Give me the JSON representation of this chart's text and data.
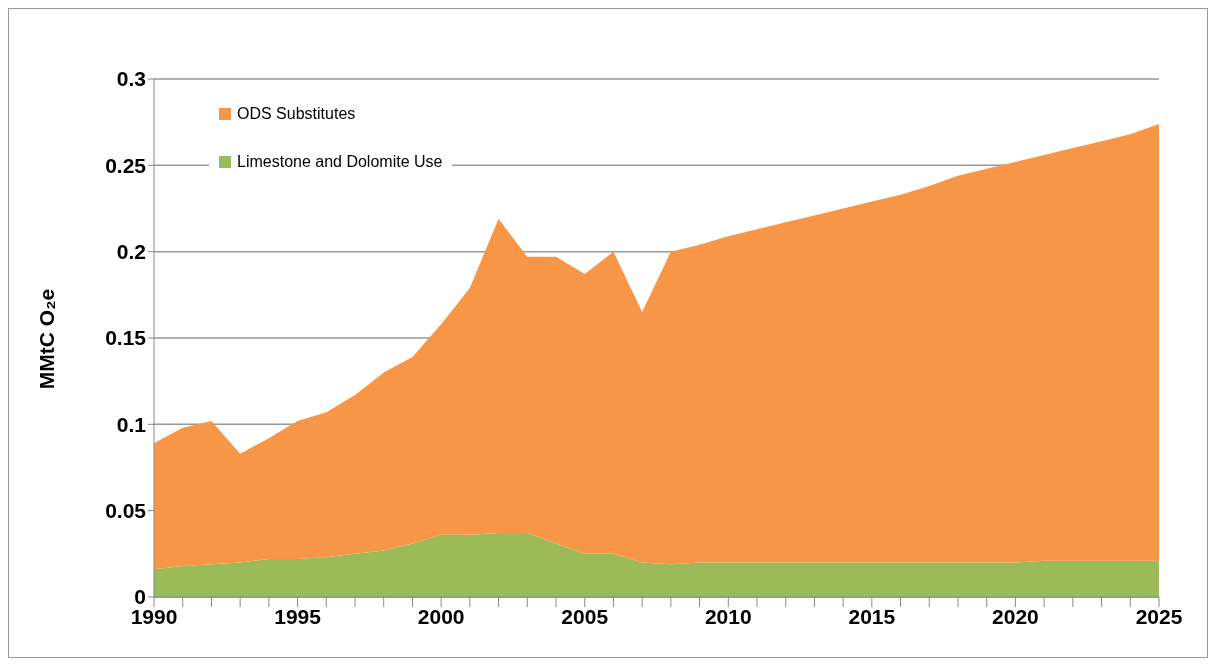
{
  "chart_data": {
    "type": "area",
    "stacked": true,
    "ylabel": "MMtC O₂e",
    "x": [
      1990,
      1991,
      1992,
      1993,
      1994,
      1995,
      1996,
      1997,
      1998,
      1999,
      2000,
      2001,
      2002,
      2003,
      2004,
      2005,
      2006,
      2007,
      2008,
      2009,
      2010,
      2011,
      2012,
      2013,
      2014,
      2015,
      2016,
      2017,
      2018,
      2019,
      2020,
      2021,
      2022,
      2023,
      2024,
      2025
    ],
    "series": [
      {
        "name": "Limestone and Dolomite Use",
        "color": "#9bbb59",
        "values": [
          0.016,
          0.018,
          0.019,
          0.02,
          0.022,
          0.022,
          0.023,
          0.025,
          0.027,
          0.031,
          0.036,
          0.036,
          0.037,
          0.037,
          0.031,
          0.025,
          0.025,
          0.02,
          0.019,
          0.02,
          0.02,
          0.02,
          0.02,
          0.02,
          0.02,
          0.02,
          0.02,
          0.02,
          0.02,
          0.02,
          0.02,
          0.021,
          0.021,
          0.021,
          0.021,
          0.021
        ]
      },
      {
        "name": "ODS Substitutes",
        "color": "#f79646",
        "values": [
          0.073,
          0.08,
          0.083,
          0.063,
          0.07,
          0.08,
          0.084,
          0.092,
          0.103,
          0.108,
          0.122,
          0.143,
          0.182,
          0.16,
          0.166,
          0.162,
          0.175,
          0.145,
          0.181,
          0.184,
          0.189,
          0.193,
          0.197,
          0.201,
          0.205,
          0.209,
          0.213,
          0.218,
          0.224,
          0.228,
          0.232,
          0.235,
          0.239,
          0.243,
          0.247,
          0.253
        ]
      }
    ],
    "xlim": [
      1990,
      2025
    ],
    "xticks": [
      1990,
      {
        "value": 1991,
        "label": null
      },
      {
        "value": 1992,
        "label": null
      },
      {
        "value": 1993,
        "label": null
      },
      {
        "value": 1994,
        "label": null
      },
      1995,
      {
        "value": 1996,
        "label": null
      },
      {
        "value": 1997,
        "label": null
      },
      {
        "value": 1998,
        "label": null
      },
      {
        "value": 1999,
        "label": null
      },
      2000,
      {
        "value": 2001,
        "label": null
      },
      {
        "value": 2002,
        "label": null
      },
      {
        "value": 2003,
        "label": null
      },
      {
        "value": 2004,
        "label": null
      },
      2005,
      {
        "value": 2006,
        "label": null
      },
      {
        "value": 2007,
        "label": null
      },
      {
        "value": 2008,
        "label": null
      },
      {
        "value": 2009,
        "label": null
      },
      2010,
      {
        "value": 2011,
        "label": null
      },
      {
        "value": 2012,
        "label": null
      },
      {
        "value": 2013,
        "label": null
      },
      {
        "value": 2014,
        "label": null
      },
      2015,
      {
        "value": 2016,
        "label": null
      },
      {
        "value": 2017,
        "label": null
      },
      {
        "value": 2018,
        "label": null
      },
      {
        "value": 2019,
        "label": null
      },
      2020,
      {
        "value": 2021,
        "label": null
      },
      {
        "value": 2022,
        "label": null
      },
      {
        "value": 2023,
        "label": null
      },
      {
        "value": 2024,
        "label": null
      },
      2025
    ],
    "ylim": [
      0,
      0.3
    ],
    "yticks": [
      0,
      0.05,
      0.1,
      0.15,
      0.2,
      0.25,
      0.3
    ],
    "grid": "y",
    "legend": "top left"
  }
}
